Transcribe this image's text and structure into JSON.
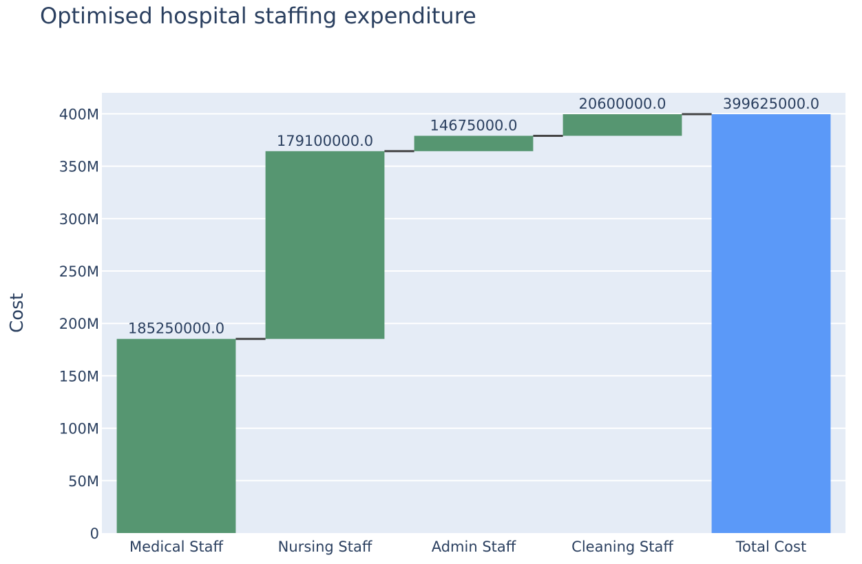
{
  "chart_data": {
    "type": "bar",
    "subtype": "waterfall",
    "title": "Optimised hospital staffing expenditure",
    "xlabel": "",
    "ylabel": "Cost",
    "categories": [
      "Medical Staff",
      "Nursing Staff",
      "Admin Staff",
      "Cleaning Staff",
      "Total Cost"
    ],
    "measures": [
      "relative",
      "relative",
      "relative",
      "relative",
      "total"
    ],
    "values": [
      185250000,
      179100000,
      14675000,
      20600000,
      399625000
    ],
    "data_labels": [
      "185250000.0",
      "179100000.0",
      "14675000.0",
      "20600000.0",
      "399625000.0"
    ],
    "ylim": [
      0,
      420000000
    ],
    "y_ticks": [
      0,
      50000000,
      100000000,
      150000000,
      200000000,
      250000000,
      300000000,
      350000000,
      400000000
    ],
    "y_tick_labels": [
      "0",
      "50M",
      "100M",
      "150M",
      "200M",
      "250M",
      "300M",
      "350M",
      "400M"
    ],
    "grid": true,
    "legend": "none",
    "colors": {
      "increase": "#569671",
      "total": "#5b99f8",
      "plot_background": "#e5ecf6",
      "connector": "#444444",
      "text": "#2a3f5f"
    }
  }
}
